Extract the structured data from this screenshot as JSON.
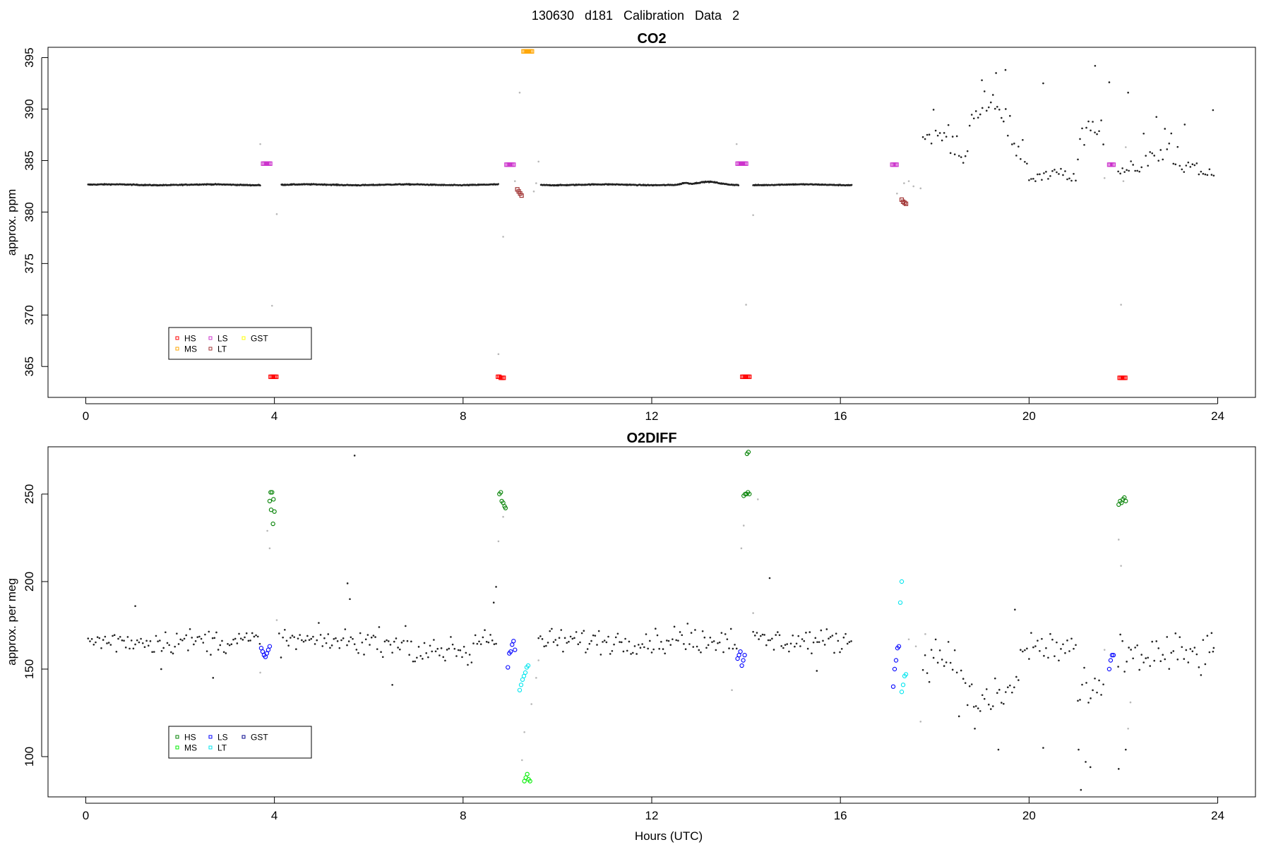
{
  "figure": {
    "title": "130630   d181   Calibration Data 2"
  },
  "chart_data": [
    {
      "type": "scatter",
      "title": "CO2",
      "xlabel": "",
      "ylabel": "approx. ppm",
      "xlim": [
        -0.8,
        24.8
      ],
      "ylim": [
        362,
        396
      ],
      "xticks": [
        0,
        4,
        8,
        12,
        16,
        20,
        24
      ],
      "yticks": [
        365,
        370,
        375,
        380,
        385,
        390,
        395
      ],
      "legend": {
        "placement": "bottom-left",
        "entries": [
          {
            "label": "HS",
            "color": "#ff0000"
          },
          {
            "label": "MS",
            "color": "#ffa500"
          },
          {
            "label": "LS",
            "color": "#cc33cc"
          },
          {
            "label": "LT",
            "color": "#a03232"
          },
          {
            "label": "GST",
            "color": "#ffff00"
          }
        ]
      },
      "series": [
        {
          "name": "HS",
          "color": "#ff0000",
          "marker": "open-square",
          "points": [
            [
              3.92,
              364.0
            ],
            [
              3.95,
              364.0
            ],
            [
              3.98,
              364.0
            ],
            [
              4.01,
              364.0
            ],
            [
              4.04,
              364.0
            ],
            [
              8.74,
              364.0
            ],
            [
              8.77,
              364.0
            ],
            [
              8.8,
              363.9
            ],
            [
              8.83,
              363.9
            ],
            [
              8.86,
              363.9
            ],
            [
              13.92,
              364.0
            ],
            [
              13.95,
              364.0
            ],
            [
              13.98,
              364.0
            ],
            [
              14.01,
              364.0
            ],
            [
              14.04,
              364.0
            ],
            [
              14.07,
              364.0
            ],
            [
              21.92,
              363.9
            ],
            [
              21.95,
              363.9
            ],
            [
              21.98,
              363.9
            ],
            [
              22.01,
              363.9
            ],
            [
              22.04,
              363.9
            ]
          ]
        },
        {
          "name": "MS",
          "color": "#ffa500",
          "marker": "open-square",
          "points": [
            [
              9.28,
              395.6
            ],
            [
              9.31,
              395.6
            ],
            [
              9.34,
              395.6
            ],
            [
              9.37,
              395.6
            ],
            [
              9.4,
              395.6
            ],
            [
              9.43,
              395.6
            ],
            [
              9.46,
              395.6
            ]
          ]
        },
        {
          "name": "LS",
          "color": "#cc33cc",
          "marker": "open-square",
          "points": [
            [
              3.76,
              384.7
            ],
            [
              3.79,
              384.7
            ],
            [
              3.82,
              384.7
            ],
            [
              3.85,
              384.7
            ],
            [
              3.88,
              384.7
            ],
            [
              3.91,
              384.7
            ],
            [
              8.92,
              384.6
            ],
            [
              8.95,
              384.6
            ],
            [
              8.98,
              384.6
            ],
            [
              9.01,
              384.6
            ],
            [
              9.04,
              384.6
            ],
            [
              9.07,
              384.6
            ],
            [
              13.82,
              384.7
            ],
            [
              13.85,
              384.7
            ],
            [
              13.88,
              384.7
            ],
            [
              13.91,
              384.7
            ],
            [
              13.94,
              384.7
            ],
            [
              13.97,
              384.7
            ],
            [
              14.0,
              384.7
            ],
            [
              17.1,
              384.6
            ],
            [
              17.13,
              384.6
            ],
            [
              17.16,
              384.6
            ],
            [
              17.19,
              384.6
            ],
            [
              21.7,
              384.6
            ],
            [
              21.73,
              384.6
            ],
            [
              21.76,
              384.6
            ],
            [
              21.79,
              384.6
            ]
          ]
        },
        {
          "name": "LT",
          "color": "#a03232",
          "marker": "open-square",
          "points": [
            [
              9.15,
              382.2
            ],
            [
              9.18,
              382.0
            ],
            [
              9.21,
              381.8
            ],
            [
              9.24,
              381.6
            ],
            [
              17.3,
              381.2
            ],
            [
              17.33,
              381.0
            ],
            [
              17.36,
              380.9
            ],
            [
              17.39,
              380.8
            ]
          ]
        }
      ]
    },
    {
      "type": "scatter",
      "title": "O2DIFF",
      "xlabel": "Hours (UTC)",
      "ylabel": "approx. per meg",
      "xlim": [
        -0.8,
        24.8
      ],
      "ylim": [
        77,
        277
      ],
      "xticks": [
        0,
        4,
        8,
        12,
        16,
        20,
        24
      ],
      "yticks": [
        100,
        150,
        200,
        250
      ],
      "legend": {
        "placement": "bottom-left",
        "entries": [
          {
            "label": "HS",
            "color": "#008000"
          },
          {
            "label": "MS",
            "color": "#00ee00"
          },
          {
            "label": "LS",
            "color": "#0000ff"
          },
          {
            "label": "LT",
            "color": "#00e5ee"
          },
          {
            "label": "GST",
            "color": "#00008b"
          }
        ]
      },
      "series": [
        {
          "name": "HS",
          "color": "#008000",
          "marker": "open-circle",
          "points": [
            [
              3.92,
              251
            ],
            [
              3.95,
              251
            ],
            [
              3.9,
              246
            ],
            [
              3.98,
              247
            ],
            [
              3.93,
              241
            ],
            [
              4.0,
              240
            ],
            [
              3.97,
              233
            ],
            [
              8.77,
              250
            ],
            [
              8.8,
              251
            ],
            [
              8.82,
              246
            ],
            [
              8.85,
              245
            ],
            [
              8.88,
              243
            ],
            [
              8.9,
              242
            ],
            [
              13.95,
              249
            ],
            [
              13.98,
              250
            ],
            [
              14.01,
              250
            ],
            [
              14.04,
              251
            ],
            [
              14.07,
              250
            ],
            [
              14.02,
              273
            ],
            [
              14.05,
              274
            ],
            [
              21.9,
              244
            ],
            [
              21.93,
              246
            ],
            [
              21.96,
              245
            ],
            [
              21.99,
              247
            ],
            [
              22.02,
              248
            ],
            [
              22.05,
              246
            ]
          ]
        },
        {
          "name": "MS",
          "color": "#00ee00",
          "marker": "open-circle",
          "points": [
            [
              9.3,
              86
            ],
            [
              9.33,
              88
            ],
            [
              9.36,
              90
            ],
            [
              9.39,
              87
            ],
            [
              9.42,
              86
            ]
          ]
        },
        {
          "name": "LS",
          "color": "#0000ff",
          "marker": "open-circle",
          "points": [
            [
              3.72,
              162
            ],
            [
              3.75,
              160
            ],
            [
              3.78,
              158
            ],
            [
              3.81,
              157
            ],
            [
              3.84,
              159
            ],
            [
              3.87,
              161
            ],
            [
              3.9,
              163
            ],
            [
              8.95,
              151
            ],
            [
              8.98,
              159
            ],
            [
              9.01,
              160
            ],
            [
              9.04,
              164
            ],
            [
              9.07,
              166
            ],
            [
              9.1,
              161
            ],
            [
              13.82,
              156
            ],
            [
              13.85,
              158
            ],
            [
              13.88,
              160
            ],
            [
              13.91,
              152
            ],
            [
              13.94,
              155
            ],
            [
              13.97,
              158
            ],
            [
              17.12,
              140
            ],
            [
              17.15,
              150
            ],
            [
              17.18,
              155
            ],
            [
              17.21,
              162
            ],
            [
              17.24,
              163
            ],
            [
              21.7,
              150
            ],
            [
              21.73,
              155
            ],
            [
              21.76,
              158
            ],
            [
              21.79,
              158
            ]
          ]
        },
        {
          "name": "LT",
          "color": "#00e5ee",
          "marker": "open-circle",
          "points": [
            [
              9.2,
              138
            ],
            [
              9.23,
              141
            ],
            [
              9.26,
              144
            ],
            [
              9.29,
              146
            ],
            [
              9.32,
              148
            ],
            [
              9.35,
              151
            ],
            [
              9.38,
              152
            ],
            [
              17.3,
              137
            ],
            [
              17.33,
              141
            ],
            [
              17.36,
              146
            ],
            [
              17.39,
              147
            ],
            [
              17.27,
              188
            ],
            [
              17.3,
              200
            ]
          ]
        }
      ]
    }
  ]
}
